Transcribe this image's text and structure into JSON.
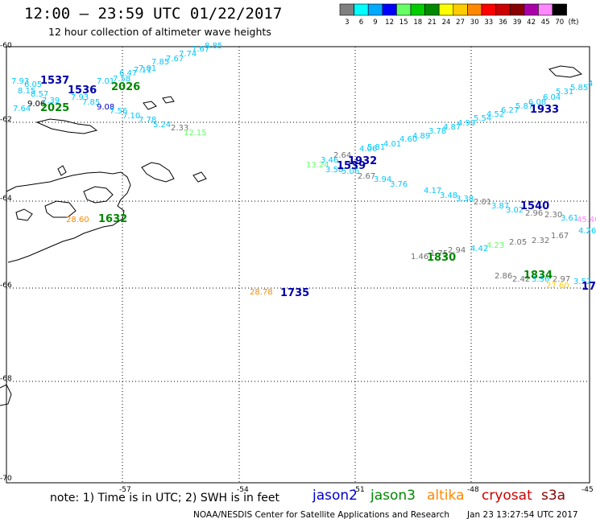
{
  "header": {
    "title": "12:00 – 23:59 UTC 01/22/2017",
    "subtitle": "12 hour collection of altimeter wave heights"
  },
  "legend": {
    "unit": "(ft)",
    "bins": [
      {
        "label": "3",
        "color": "#808080"
      },
      {
        "label": "6",
        "color": "#00ffff"
      },
      {
        "label": "9",
        "color": "#00aaff"
      },
      {
        "label": "12",
        "color": "#0000ff"
      },
      {
        "label": "15",
        "color": "#66ff66"
      },
      {
        "label": "18",
        "color": "#00cc00"
      },
      {
        "label": "21",
        "color": "#008800"
      },
      {
        "label": "24",
        "color": "#ffff00"
      },
      {
        "label": "27",
        "color": "#ffcc00"
      },
      {
        "label": "30",
        "color": "#ff8800"
      },
      {
        "label": "33",
        "color": "#ff0000"
      },
      {
        "label": "36",
        "color": "#cc0000"
      },
      {
        "label": "39",
        "color": "#880000"
      },
      {
        "label": "42",
        "color": "#aa00aa"
      },
      {
        "label": "45",
        "color": "#ff88ff"
      },
      {
        "label": "70",
        "color": "#000000"
      }
    ]
  },
  "axes": {
    "lon_labels": [
      "-57",
      "-54",
      "-51",
      "-48",
      "-45"
    ],
    "lat_labels": [
      "-60",
      "-62",
      "-64",
      "-66",
      "-68",
      "-70"
    ]
  },
  "wave_heights": [
    {
      "text": "7.93",
      "color": "#00c8ff"
    },
    {
      "text": "6.05",
      "color": "#00c8ff"
    },
    {
      "text": "8.15",
      "color": "#00c8ff"
    },
    {
      "text": "8.57",
      "color": "#00c8ff"
    },
    {
      "text": "7.39",
      "color": "#00c8ff"
    },
    {
      "text": "9.06",
      "color": "#000000"
    },
    {
      "text": "7.64",
      "color": "#00c8ff"
    },
    {
      "text": "7.93",
      "color": "#00c8ff"
    },
    {
      "text": "7.85",
      "color": "#00c8ff"
    },
    {
      "text": "9.08",
      "color": "#0000cc"
    },
    {
      "text": "7.56",
      "color": "#00c8ff"
    },
    {
      "text": "7.10",
      "color": "#00c8ff"
    },
    {
      "text": "7.78",
      "color": "#00c8ff"
    },
    {
      "text": "5.24",
      "color": "#00c8ff"
    },
    {
      "text": "2.33",
      "color": "#707070"
    },
    {
      "text": "12.15",
      "color": "#66ff66"
    },
    {
      "text": "7.01",
      "color": "#00c8ff"
    },
    {
      "text": "7.58",
      "color": "#00c8ff"
    },
    {
      "text": "6.47",
      "color": "#00c8ff"
    },
    {
      "text": "7.11",
      "color": "#00c8ff"
    },
    {
      "text": "7.01",
      "color": "#00c8ff"
    },
    {
      "text": "7.85",
      "color": "#00c8ff"
    },
    {
      "text": "7.67",
      "color": "#00c8ff"
    },
    {
      "text": "7.74",
      "color": "#00c8ff"
    },
    {
      "text": "7.67",
      "color": "#00c8ff"
    },
    {
      "text": "8.85",
      "color": "#00c8ff"
    },
    {
      "text": "13.24",
      "color": "#66ff66"
    },
    {
      "text": "3.46",
      "color": "#00c8ff"
    },
    {
      "text": "3.58",
      "color": "#00c8ff"
    },
    {
      "text": "2.64",
      "color": "#707070"
    },
    {
      "text": "5.06",
      "color": "#00c8ff"
    },
    {
      "text": "2.67",
      "color": "#707070"
    },
    {
      "text": "4.06",
      "color": "#00c8ff"
    },
    {
      "text": "5.81",
      "color": "#00c8ff"
    },
    {
      "text": "4.01",
      "color": "#00c8ff"
    },
    {
      "text": "4.60",
      "color": "#00c8ff"
    },
    {
      "text": "4.89",
      "color": "#00c8ff"
    },
    {
      "text": "3.78",
      "color": "#00c8ff"
    },
    {
      "text": "4.87",
      "color": "#00c8ff"
    },
    {
      "text": "4.99",
      "color": "#00c8ff"
    },
    {
      "text": "5.54",
      "color": "#00c8ff"
    },
    {
      "text": "4.52",
      "color": "#00c8ff"
    },
    {
      "text": "6.27",
      "color": "#00c8ff"
    },
    {
      "text": "5.87",
      "color": "#00c8ff"
    },
    {
      "text": "6.08",
      "color": "#00c8ff"
    },
    {
      "text": "6.04",
      "color": "#00c8ff"
    },
    {
      "text": "5.31",
      "color": "#00c8ff"
    },
    {
      "text": "5.85",
      "color": "#00c8ff"
    },
    {
      "text": "4",
      "color": "#00c8ff"
    },
    {
      "text": "3.94",
      "color": "#00c8ff"
    },
    {
      "text": "3.76",
      "color": "#00c8ff"
    },
    {
      "text": "4.17",
      "color": "#00c8ff"
    },
    {
      "text": "3.48",
      "color": "#00c8ff"
    },
    {
      "text": "3.38",
      "color": "#00c8ff"
    },
    {
      "text": "2.01",
      "color": "#707070"
    },
    {
      "text": "3.87",
      "color": "#00c8ff"
    },
    {
      "text": "3.02",
      "color": "#00c8ff"
    },
    {
      "text": "2.96",
      "color": "#707070"
    },
    {
      "text": "2.30",
      "color": "#707070"
    },
    {
      "text": "3.61",
      "color": "#00c8ff"
    },
    {
      "text": "45.40",
      "color": "#ff88ff"
    },
    {
      "text": "4.26",
      "color": "#00c8ff"
    },
    {
      "text": "1.67",
      "color": "#707070"
    },
    {
      "text": "2.32",
      "color": "#707070"
    },
    {
      "text": "2.05",
      "color": "#707070"
    },
    {
      "text": "4.23",
      "color": "#66ff66"
    },
    {
      "text": "4.42",
      "color": "#00c8ff"
    },
    {
      "text": "2.94",
      "color": "#707070"
    },
    {
      "text": "1.75",
      "color": "#707070"
    },
    {
      "text": "1.46",
      "color": "#707070"
    },
    {
      "text": "2.86",
      "color": "#707070"
    },
    {
      "text": "2.42",
      "color": "#707070"
    },
    {
      "text": "3.36",
      "color": "#00c8ff"
    },
    {
      "text": "2.97",
      "color": "#707070"
    },
    {
      "text": "3.52",
      "color": "#00c8ff"
    },
    {
      "text": "27.60",
      "color": "#ffcc00"
    },
    {
      "text": "28.60",
      "color": "#ff8800"
    },
    {
      "text": "28.78",
      "color": "#ff8800"
    }
  ],
  "pass_times": [
    {
      "text": "1537",
      "color": "#0000aa"
    },
    {
      "text": "1536",
      "color": "#0000aa"
    },
    {
      "text": "2026",
      "color": "#008800"
    },
    {
      "text": "2025",
      "color": "#008800"
    },
    {
      "text": "1932",
      "color": "#0000aa"
    },
    {
      "text": "1539",
      "color": "#0000aa"
    },
    {
      "text": "1933",
      "color": "#0000aa"
    },
    {
      "text": "1540",
      "color": "#0000aa"
    },
    {
      "text": "1830",
      "color": "#008800"
    },
    {
      "text": "1834",
      "color": "#008800"
    },
    {
      "text": "17",
      "color": "#0000aa"
    },
    {
      "text": "1632",
      "color": "#008800"
    },
    {
      "text": "1735",
      "color": "#0000aa"
    }
  ],
  "footer": {
    "note": "note: 1) Time is in UTC; 2) SWH is in feet",
    "satellites": [
      {
        "name": "jason2",
        "color": "#0000cc"
      },
      {
        "name": "jason3",
        "color": "#008800"
      },
      {
        "name": "altika",
        "color": "#ff8800"
      },
      {
        "name": "cryosat",
        "color": "#cc0000"
      },
      {
        "name": "s3a",
        "color": "#880000"
      }
    ],
    "credit": "NOAA/NESDIS Center for Satellite Applications and Research",
    "timestamp": "Jan 23 13:27:54 UTC 2017"
  }
}
